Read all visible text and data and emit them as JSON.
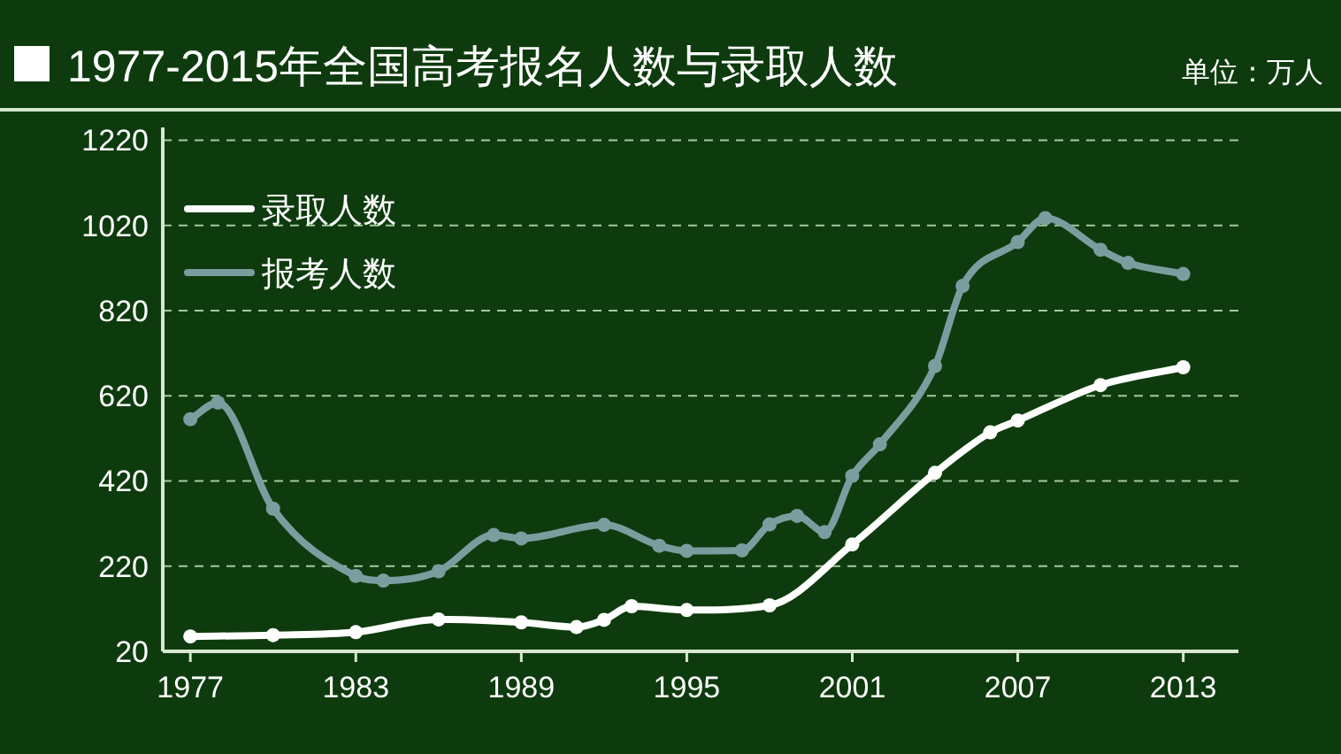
{
  "chart_data": {
    "type": "line",
    "title": "1977-2015年全国高考报名人数与录取人数",
    "annotations": [
      "单位：万人"
    ],
    "series": [
      {
        "name": "录取人数",
        "color": "#ffffff",
        "x": [
          1977,
          1980,
          1983,
          1986,
          1989,
          1991,
          1992,
          1993,
          1995,
          1998,
          2001,
          2004,
          2006,
          2007,
          2010,
          2013
        ],
        "values": [
          55,
          58,
          65,
          95,
          88,
          77,
          94,
          126,
          117,
          128,
          271,
          439,
          534,
          562,
          645,
          687
        ]
      },
      {
        "name": "报考人数",
        "color": "#7a9ea0",
        "x": [
          1977,
          1978,
          1980,
          1983,
          1984,
          1986,
          1988,
          1989,
          1992,
          1994,
          1995,
          1997,
          1998,
          1999,
          2000,
          2001,
          2002,
          2004,
          2005,
          2007,
          2008,
          2010,
          2011,
          2013
        ],
        "values": [
          565,
          604,
          355,
          197,
          186,
          208,
          293,
          285,
          317,
          268,
          256,
          257,
          318,
          338,
          300,
          432,
          506,
          690,
          878,
          981,
          1037,
          963,
          932,
          906
        ]
      }
    ],
    "xlim": [
      1976,
      2015
    ],
    "xticks": [
      1977,
      1983,
      1989,
      1995,
      2001,
      2007,
      2013
    ],
    "ylim": [
      20,
      1250
    ],
    "yticks": [
      20,
      220,
      420,
      620,
      820,
      1020,
      1220
    ],
    "grid": "y",
    "legend": "top left",
    "marker": "circle",
    "line_style": "solid"
  }
}
